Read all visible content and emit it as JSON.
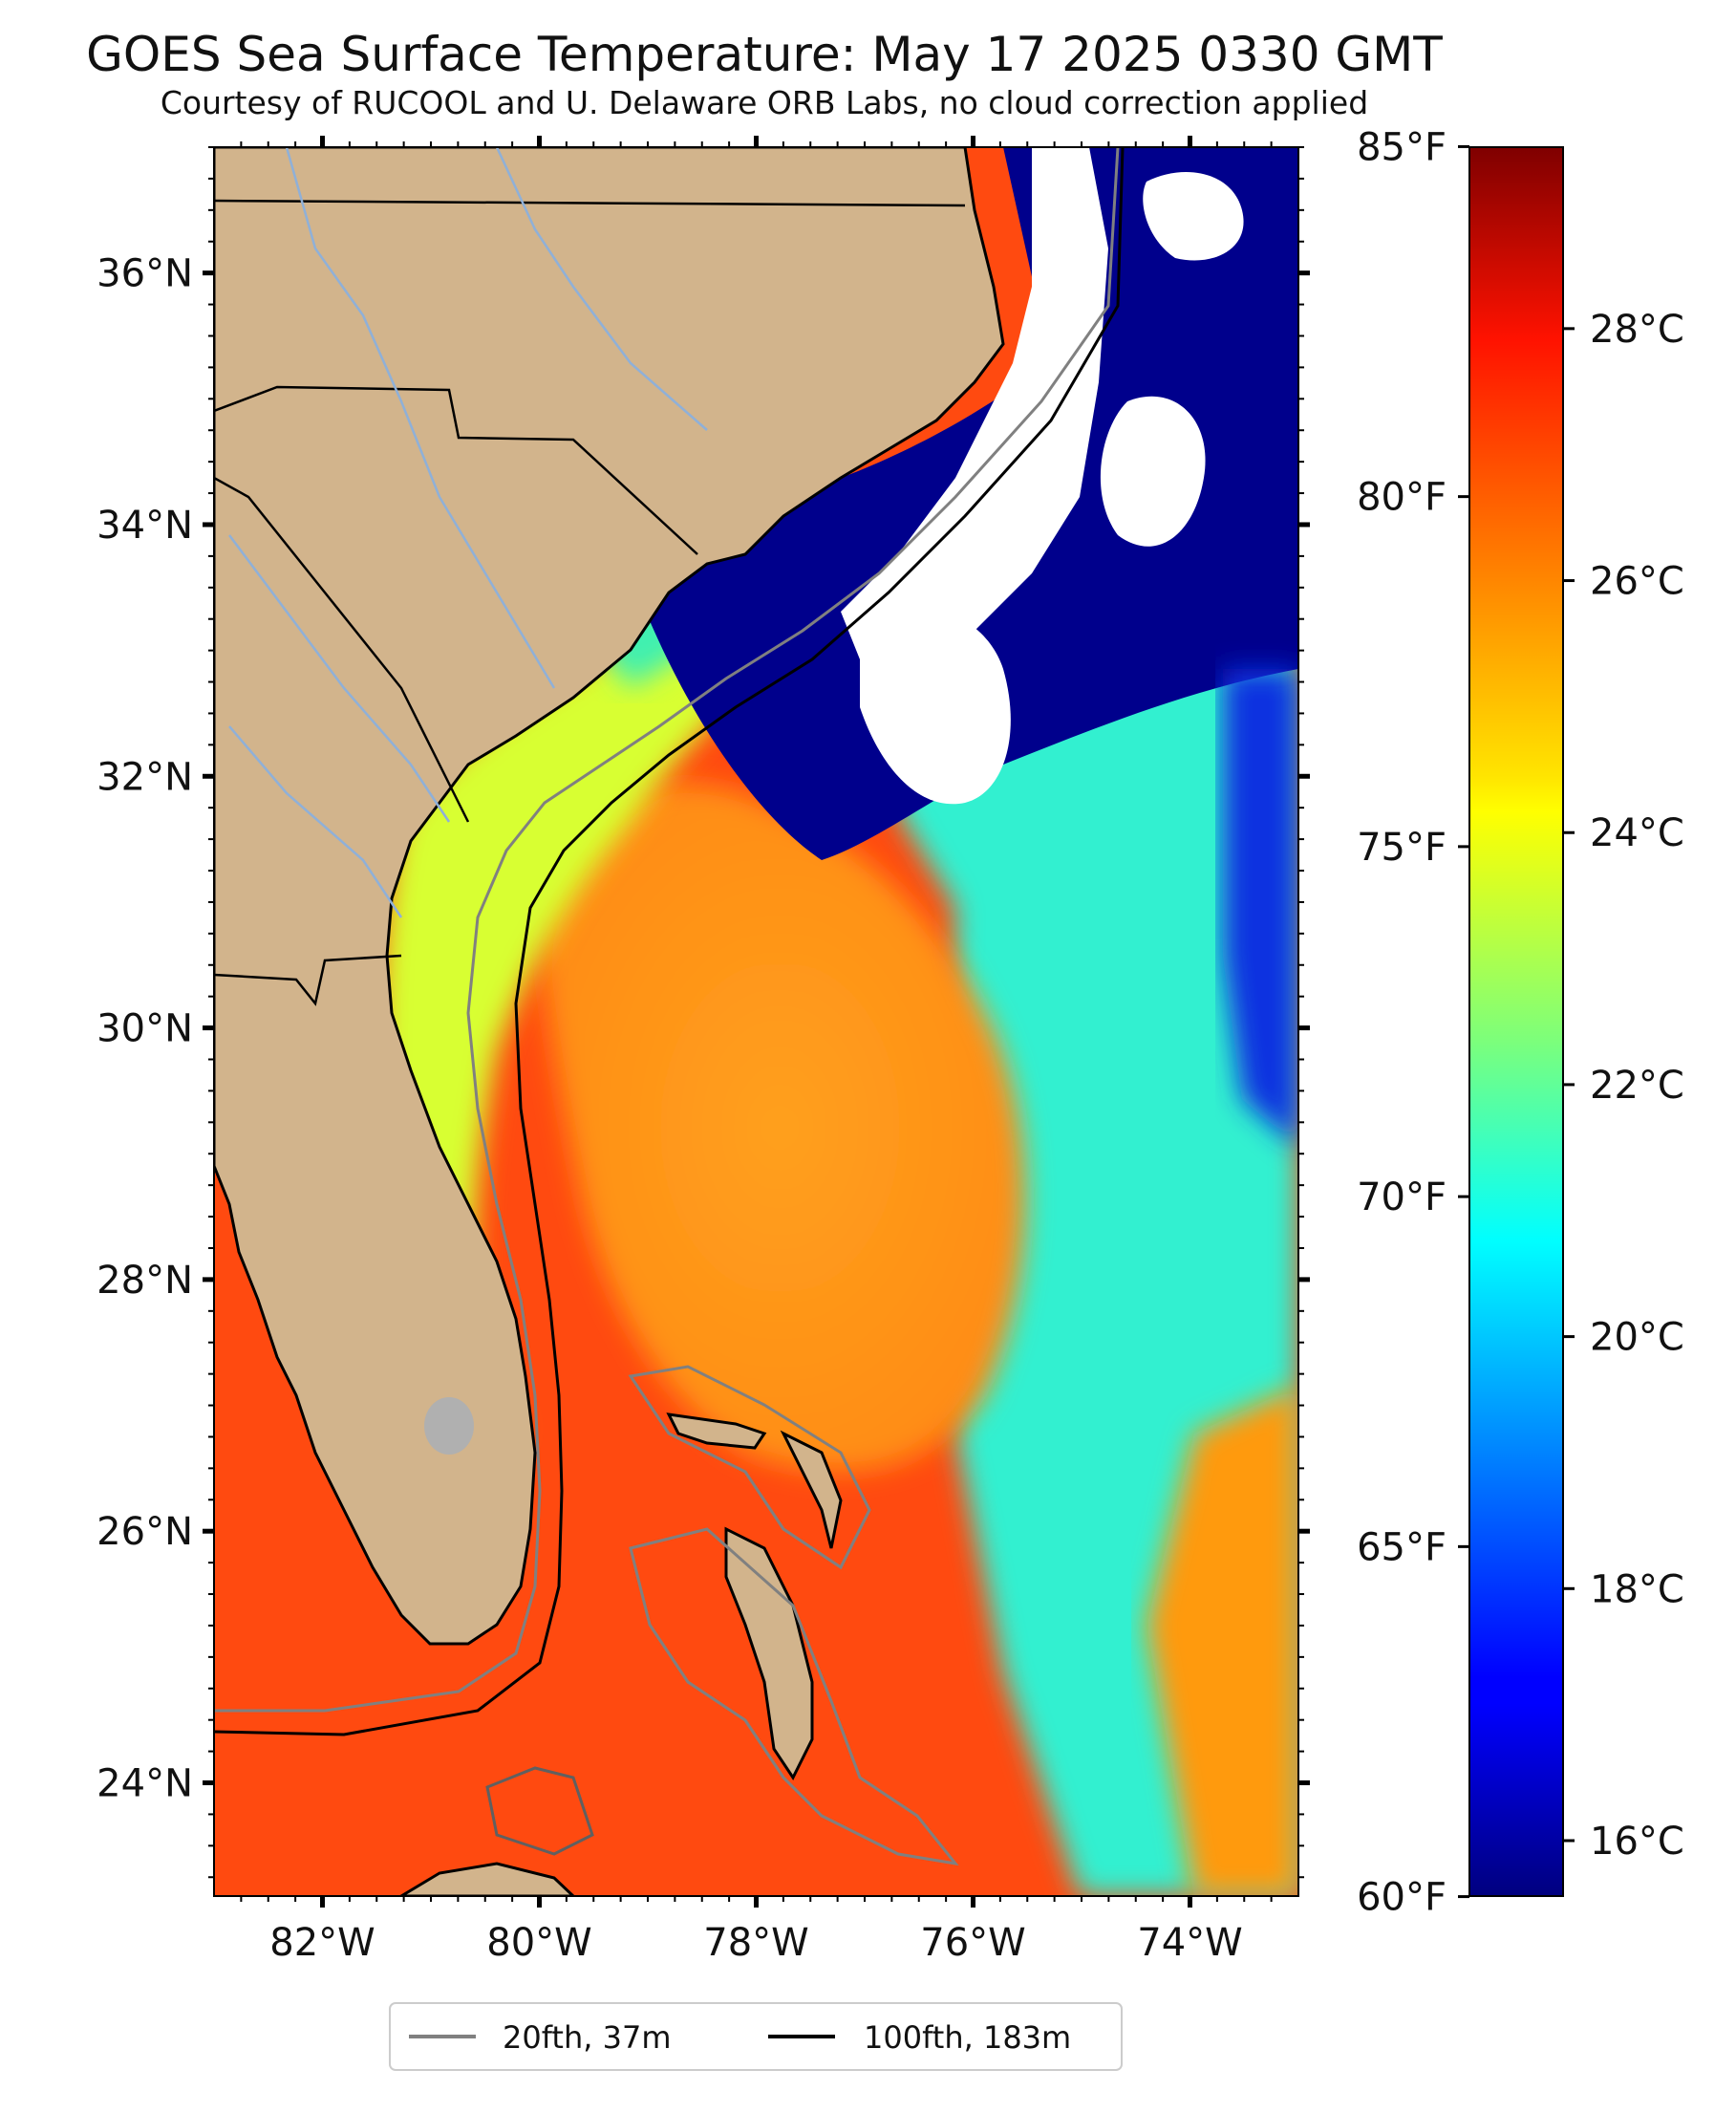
{
  "title": "GOES Sea Surface Temperature: May 17 2025 0330 GMT",
  "subtitle": "Courtesy of RUCOOL and U. Delaware ORB Labs, no cloud correction applied",
  "map": {
    "lon_range": [
      -83,
      -73
    ],
    "lat_range": [
      23.1,
      37.0
    ],
    "lat_labels": [
      {
        "lat": 36,
        "label": "36°N"
      },
      {
        "lat": 34,
        "label": "34°N"
      },
      {
        "lat": 32,
        "label": "32°N"
      },
      {
        "lat": 30,
        "label": "30°N"
      },
      {
        "lat": 28,
        "label": "28°N"
      },
      {
        "lat": 26,
        "label": "26°N"
      },
      {
        "lat": 24,
        "label": "24°N"
      }
    ],
    "lon_labels": [
      {
        "lon": -82,
        "label": "82°W"
      },
      {
        "lon": -80,
        "label": "80°W"
      },
      {
        "lon": -78,
        "label": "78°W"
      },
      {
        "lon": -76,
        "label": "76°W"
      },
      {
        "lon": -74,
        "label": "74°W"
      }
    ],
    "colors": {
      "land": "#d2b48c",
      "cloud": "#ffffff",
      "isobath_20": "#808080",
      "isobath_100": "#000000"
    }
  },
  "colorbar": {
    "celsius_range": [
      15.56,
      29.44
    ],
    "celsius_labels": [
      "28°C",
      "26°C",
      "24°C",
      "22°C",
      "20°C",
      "18°C",
      "16°C"
    ],
    "celsius_values": [
      28,
      26,
      24,
      22,
      20,
      18,
      16
    ],
    "fahrenheit_labels": [
      "85°F",
      "80°F",
      "75°F",
      "70°F",
      "65°F",
      "60°F"
    ],
    "fahrenheit_values": [
      85,
      80,
      75,
      70,
      65,
      60
    ],
    "colormap": "jet"
  },
  "legend": {
    "items": [
      {
        "label": "20fth, 37m",
        "color": "#808080"
      },
      {
        "label": "100fth, 183m",
        "color": "#000000"
      }
    ]
  }
}
